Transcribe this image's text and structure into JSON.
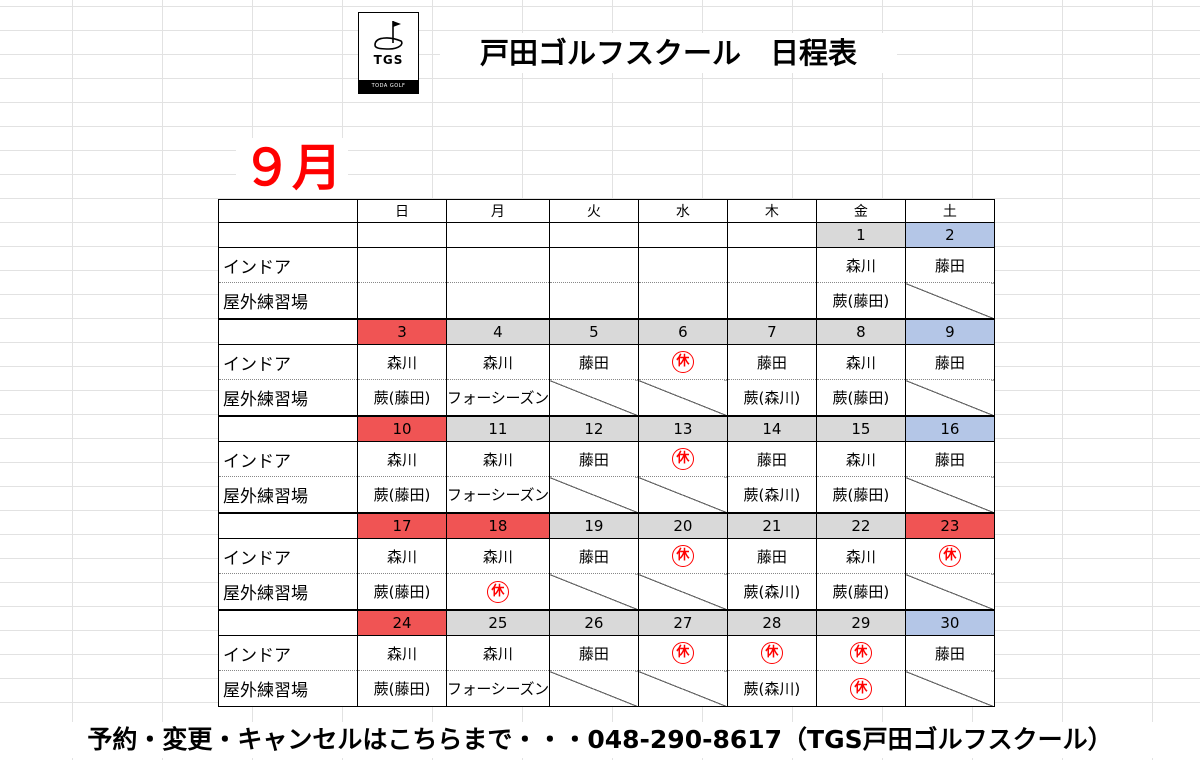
{
  "logo": {
    "text": "TGS",
    "subtext": "TODA GOLF SCHOOL"
  },
  "title": "戸田ゴルフスクール　日程表",
  "month": "９月",
  "weekdays": [
    "日",
    "月",
    "火",
    "水",
    "木",
    "金",
    "土"
  ],
  "row_labels": {
    "indoor": "インドア",
    "outdoor": "屋外練習場"
  },
  "closed_label": "休",
  "colors": {
    "sunday_holiday": "#f05454",
    "saturday": "#b4c6e7",
    "weekday": "#d9d9d9",
    "closed": "#ff0000",
    "month": "#ff0000"
  },
  "weeks": [
    {
      "dates": [
        {
          "d": "",
          "c": ""
        },
        {
          "d": "",
          "c": ""
        },
        {
          "d": "",
          "c": ""
        },
        {
          "d": "",
          "c": ""
        },
        {
          "d": "",
          "c": ""
        },
        {
          "d": "1",
          "c": "gray"
        },
        {
          "d": "2",
          "c": "blue"
        }
      ],
      "indoor": [
        {
          "t": ""
        },
        {
          "t": ""
        },
        {
          "t": ""
        },
        {
          "t": ""
        },
        {
          "t": ""
        },
        {
          "t": "森川"
        },
        {
          "t": "藤田"
        }
      ],
      "outdoor": [
        {
          "t": ""
        },
        {
          "t": ""
        },
        {
          "t": ""
        },
        {
          "t": ""
        },
        {
          "t": ""
        },
        {
          "t": "蕨(藤田)"
        },
        {
          "slash": true
        }
      ]
    },
    {
      "dates": [
        {
          "d": "3",
          "c": "red"
        },
        {
          "d": "4",
          "c": "gray"
        },
        {
          "d": "5",
          "c": "gray"
        },
        {
          "d": "6",
          "c": "gray"
        },
        {
          "d": "7",
          "c": "gray"
        },
        {
          "d": "8",
          "c": "gray"
        },
        {
          "d": "9",
          "c": "blue"
        }
      ],
      "indoor": [
        {
          "t": "森川"
        },
        {
          "t": "森川"
        },
        {
          "t": "藤田"
        },
        {
          "closed": true
        },
        {
          "t": "藤田"
        },
        {
          "t": "森川"
        },
        {
          "t": "藤田"
        }
      ],
      "outdoor": [
        {
          "t": "蕨(藤田)"
        },
        {
          "t": "フォーシーズン",
          "small": true
        },
        {
          "slash": true
        },
        {
          "slash": true
        },
        {
          "t": "蕨(森川)"
        },
        {
          "t": "蕨(藤田)"
        },
        {
          "slash": true
        }
      ]
    },
    {
      "dates": [
        {
          "d": "10",
          "c": "red"
        },
        {
          "d": "11",
          "c": "gray"
        },
        {
          "d": "12",
          "c": "gray"
        },
        {
          "d": "13",
          "c": "gray"
        },
        {
          "d": "14",
          "c": "gray"
        },
        {
          "d": "15",
          "c": "gray"
        },
        {
          "d": "16",
          "c": "blue"
        }
      ],
      "indoor": [
        {
          "t": "森川"
        },
        {
          "t": "森川"
        },
        {
          "t": "藤田"
        },
        {
          "closed": true
        },
        {
          "t": "藤田"
        },
        {
          "t": "森川"
        },
        {
          "t": "藤田"
        }
      ],
      "outdoor": [
        {
          "t": "蕨(藤田)"
        },
        {
          "t": "フォーシーズン",
          "small": true
        },
        {
          "slash": true
        },
        {
          "slash": true
        },
        {
          "t": "蕨(森川)"
        },
        {
          "t": "蕨(藤田)"
        },
        {
          "slash": true
        }
      ]
    },
    {
      "dates": [
        {
          "d": "17",
          "c": "red"
        },
        {
          "d": "18",
          "c": "red"
        },
        {
          "d": "19",
          "c": "gray"
        },
        {
          "d": "20",
          "c": "gray"
        },
        {
          "d": "21",
          "c": "gray"
        },
        {
          "d": "22",
          "c": "gray"
        },
        {
          "d": "23",
          "c": "red"
        }
      ],
      "indoor": [
        {
          "t": "森川"
        },
        {
          "t": "森川"
        },
        {
          "t": "藤田"
        },
        {
          "closed": true
        },
        {
          "t": "藤田"
        },
        {
          "t": "森川"
        },
        {
          "closed": true
        }
      ],
      "outdoor": [
        {
          "t": "蕨(藤田)"
        },
        {
          "closed": true
        },
        {
          "slash": true
        },
        {
          "slash": true
        },
        {
          "t": "蕨(森川)"
        },
        {
          "t": "蕨(藤田)"
        },
        {
          "slash": true
        }
      ]
    },
    {
      "dates": [
        {
          "d": "24",
          "c": "red"
        },
        {
          "d": "25",
          "c": "gray"
        },
        {
          "d": "26",
          "c": "gray"
        },
        {
          "d": "27",
          "c": "gray"
        },
        {
          "d": "28",
          "c": "gray"
        },
        {
          "d": "29",
          "c": "gray"
        },
        {
          "d": "30",
          "c": "blue"
        }
      ],
      "indoor": [
        {
          "t": "森川"
        },
        {
          "t": "森川"
        },
        {
          "t": "藤田"
        },
        {
          "closed": true
        },
        {
          "closed": true
        },
        {
          "closed": true
        },
        {
          "t": "藤田"
        }
      ],
      "outdoor": [
        {
          "t": "蕨(藤田)"
        },
        {
          "t": "フォーシーズン",
          "small": true
        },
        {
          "slash": true
        },
        {
          "slash": true
        },
        {
          "t": "蕨(森川)"
        },
        {
          "closed": true
        },
        {
          "slash": true
        }
      ]
    }
  ],
  "footer": "予約・変更・キャンセルはこちらまで・・・048-290-8617（TGS戸田ゴルフスクール）"
}
